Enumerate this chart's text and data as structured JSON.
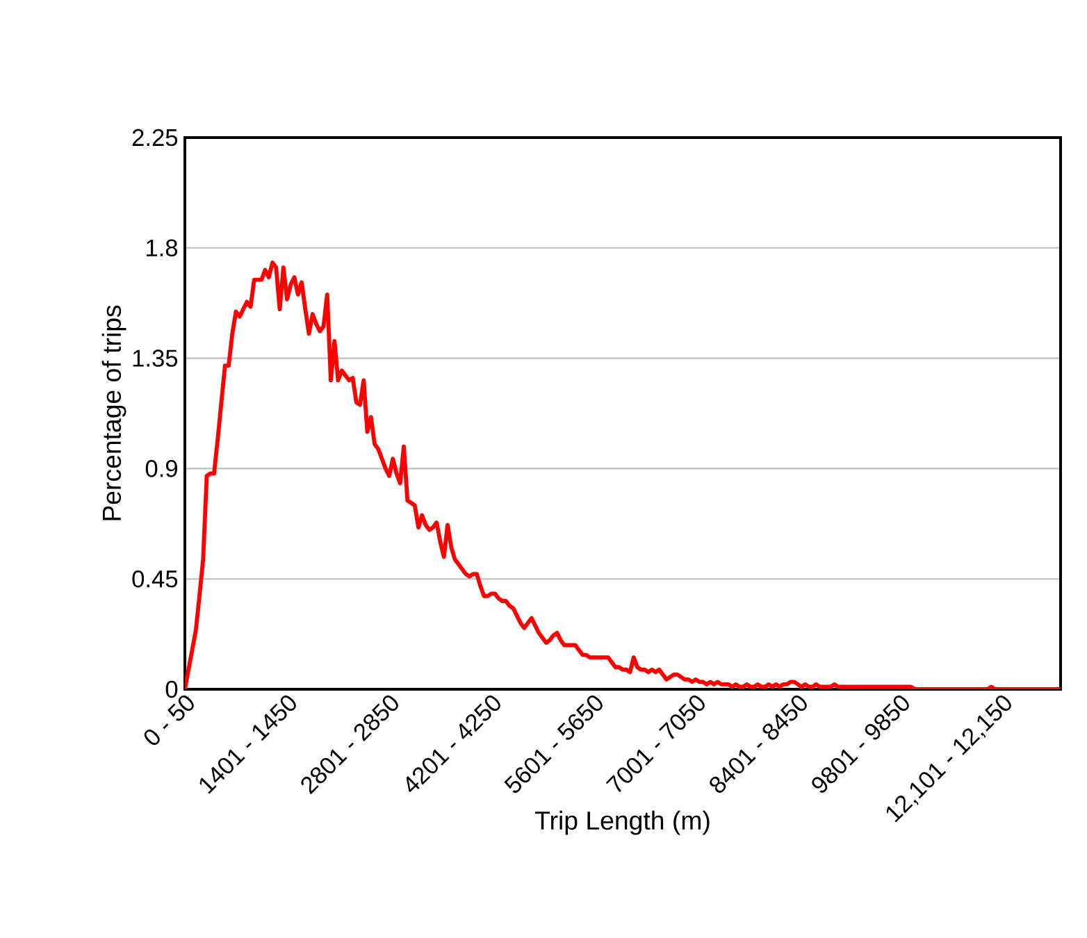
{
  "chart_data": {
    "type": "line",
    "xlabel": "Trip Length (m)",
    "ylabel": "Percentage of trips",
    "ylim": [
      0,
      2.25
    ],
    "yticks": [
      0,
      0.45,
      0.9,
      1.35,
      1.8,
      2.25
    ],
    "categories": [
      "0 - 50",
      null,
      null,
      null,
      null,
      null,
      null,
      null,
      null,
      null,
      null,
      null,
      null,
      null,
      null,
      null,
      null,
      null,
      null,
      null,
      null,
      null,
      null,
      null,
      null,
      null,
      null,
      null,
      "1401 - 1450",
      null,
      null,
      null,
      null,
      null,
      null,
      null,
      null,
      null,
      null,
      null,
      null,
      null,
      null,
      null,
      null,
      null,
      null,
      null,
      null,
      null,
      null,
      null,
      null,
      null,
      null,
      null,
      "2801 - 2850",
      null,
      null,
      null,
      null,
      null,
      null,
      null,
      null,
      null,
      null,
      null,
      null,
      null,
      null,
      null,
      null,
      null,
      null,
      null,
      null,
      null,
      null,
      null,
      null,
      null,
      null,
      null,
      "4201 - 4250",
      null,
      null,
      null,
      null,
      null,
      null,
      null,
      null,
      null,
      null,
      null,
      null,
      null,
      null,
      null,
      null,
      null,
      null,
      null,
      null,
      null,
      null,
      null,
      null,
      null,
      null,
      null,
      "5601 - 5650",
      null,
      null,
      null,
      null,
      null,
      null,
      null,
      null,
      null,
      null,
      null,
      null,
      null,
      null,
      null,
      null,
      null,
      null,
      null,
      null,
      null,
      null,
      null,
      null,
      null,
      null,
      null,
      "7001 - 7050",
      null,
      null,
      null,
      null,
      null,
      null,
      null,
      null,
      null,
      null,
      null,
      null,
      null,
      null,
      null,
      null,
      null,
      null,
      null,
      null,
      null,
      null,
      null,
      null,
      null,
      null,
      null,
      "8401 - 8450",
      null,
      null,
      null,
      null,
      null,
      null,
      null,
      null,
      null,
      null,
      null,
      null,
      null,
      null,
      null,
      null,
      null,
      null,
      null,
      null,
      null,
      null,
      null,
      null,
      null,
      null,
      null,
      "9801 - 9850",
      null,
      null,
      null,
      null,
      null,
      null,
      null,
      null,
      null,
      null,
      null,
      null,
      null,
      null,
      null,
      null,
      null,
      null,
      null,
      null,
      null,
      null,
      null,
      null,
      null,
      null,
      null,
      "12,101 - 12,150",
      null,
      null,
      null,
      null,
      null,
      null,
      null,
      null,
      null,
      null,
      null,
      null,
      null,
      null,
      null,
      null
    ],
    "grid": "y",
    "marker": "none",
    "line_style": "solid",
    "series": [
      {
        "color": "#ff0000",
        "values": [
          0,
          0.08,
          0.16,
          0.24,
          0.38,
          0.53,
          0.87,
          0.88,
          0.88,
          1.02,
          1.17,
          1.32,
          1.32,
          1.45,
          1.54,
          1.52,
          1.55,
          1.58,
          1.56,
          1.67,
          1.67,
          1.67,
          1.71,
          1.68,
          1.74,
          1.72,
          1.55,
          1.72,
          1.59,
          1.65,
          1.68,
          1.61,
          1.66,
          1.55,
          1.45,
          1.53,
          1.49,
          1.46,
          1.48,
          1.61,
          1.26,
          1.42,
          1.26,
          1.3,
          1.28,
          1.26,
          1.27,
          1.17,
          1.16,
          1.26,
          1.05,
          1.11,
          1.0,
          0.98,
          0.94,
          0.9,
          0.87,
          0.94,
          0.88,
          0.84,
          0.99,
          0.77,
          0.76,
          0.75,
          0.66,
          0.71,
          0.67,
          0.65,
          0.66,
          0.68,
          0.6,
          0.54,
          0.67,
          0.58,
          0.53,
          0.51,
          0.49,
          0.47,
          0.46,
          0.47,
          0.47,
          0.42,
          0.38,
          0.38,
          0.39,
          0.39,
          0.37,
          0.36,
          0.36,
          0.34,
          0.33,
          0.3,
          0.27,
          0.25,
          0.27,
          0.29,
          0.26,
          0.23,
          0.21,
          0.19,
          0.2,
          0.22,
          0.23,
          0.2,
          0.18,
          0.18,
          0.18,
          0.18,
          0.16,
          0.14,
          0.14,
          0.13,
          0.13,
          0.13,
          0.13,
          0.13,
          0.13,
          0.11,
          0.09,
          0.09,
          0.08,
          0.08,
          0.07,
          0.13,
          0.09,
          0.08,
          0.08,
          0.07,
          0.08,
          0.07,
          0.08,
          0.06,
          0.04,
          0.05,
          0.06,
          0.06,
          0.05,
          0.04,
          0.04,
          0.03,
          0.04,
          0.03,
          0.03,
          0.02,
          0.03,
          0.02,
          0.03,
          0.02,
          0.02,
          0.02,
          0.01,
          0.02,
          0.01,
          0.01,
          0.02,
          0.01,
          0.01,
          0.02,
          0.01,
          0.01,
          0.02,
          0.01,
          0.02,
          0.01,
          0.02,
          0.02,
          0.03,
          0.03,
          0.02,
          0.01,
          0.02,
          0.01,
          0.01,
          0.02,
          0.01,
          0.01,
          0.01,
          0.01,
          0.02,
          0.01,
          0.01,
          0.01,
          0.01,
          0.01,
          0.01,
          0.01,
          0.01,
          0.01,
          0.01,
          0.01,
          0.01,
          0.01,
          0.01,
          0.01,
          0.01,
          0.01,
          0.01,
          0.01,
          0.01,
          0.01,
          0,
          0,
          0,
          0,
          0,
          0,
          0,
          0,
          0,
          0,
          0,
          0,
          0,
          0,
          0,
          0,
          0,
          0,
          0,
          0,
          0,
          0.01,
          0,
          0,
          0,
          0,
          0,
          0,
          0,
          0,
          0,
          0,
          0,
          0,
          0,
          0,
          0,
          0,
          0,
          0,
          0
        ]
      }
    ]
  }
}
